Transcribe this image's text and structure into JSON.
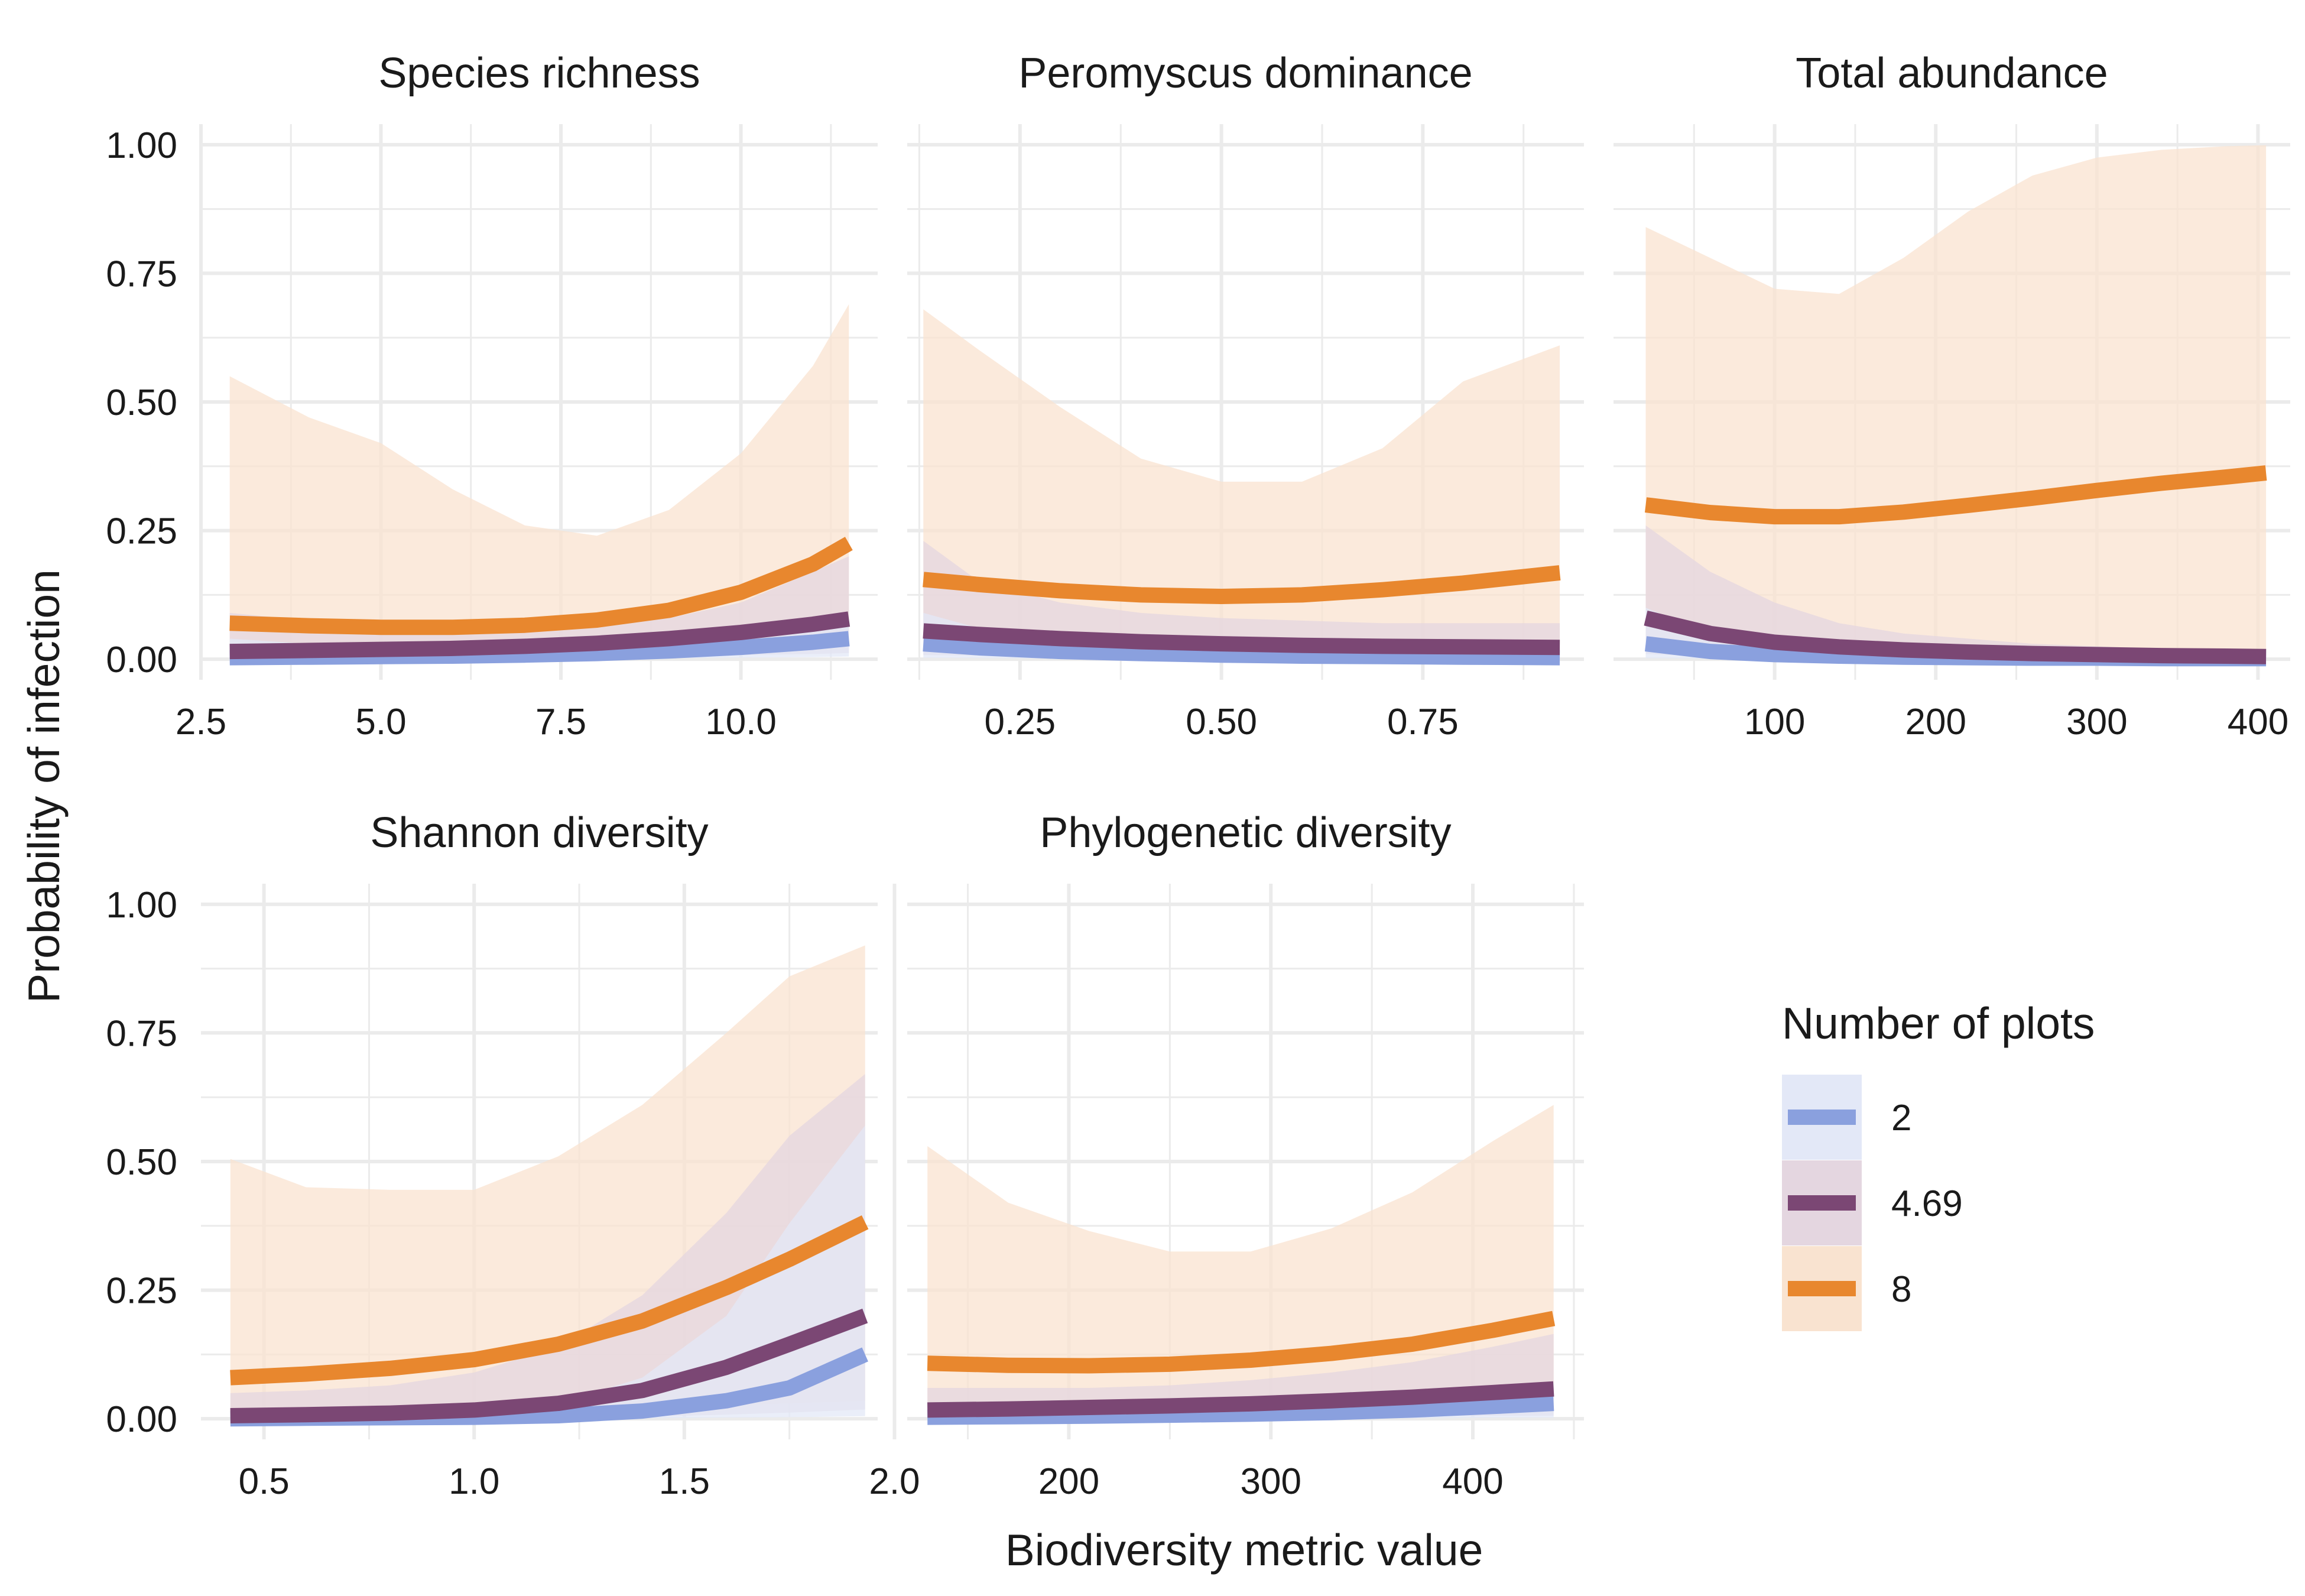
{
  "chart_data": {
    "type": "line",
    "ylabel": "Probability of infection",
    "xlabel": "Biodiversity metric value",
    "legend": {
      "title": "Number of plots",
      "placement": "right",
      "entries": [
        {
          "label": "2",
          "color": "#8aa0de",
          "fill": "#e3e8f7"
        },
        {
          "label": "4.69",
          "color": "#7b4774",
          "fill": "#e4d6e0"
        },
        {
          "label": "8",
          "color": "#e8872e",
          "fill": "#f9e3d0"
        }
      ]
    },
    "ylim": [
      -0.04,
      1.04
    ],
    "y_ticks": [
      0.0,
      0.25,
      0.5,
      0.75,
      1.0
    ],
    "y_tick_labels": [
      "0.00",
      "0.25",
      "0.50",
      "0.75",
      "1.00"
    ],
    "panels": [
      {
        "title": "Species richness",
        "xlim": [
          2.5,
          11.9
        ],
        "x_ticks": [
          2.5,
          5.0,
          7.5,
          10.0
        ],
        "x_tick_labels": [
          "2.5",
          "5.0",
          "7.5",
          "10.0"
        ],
        "x": [
          2.9,
          4.0,
          5.0,
          6.0,
          7.0,
          8.0,
          9.0,
          10.0,
          11.0,
          11.5
        ],
        "series": [
          {
            "name": "2",
            "values": [
              0.003,
              0.004,
              0.005,
              0.006,
              0.008,
              0.011,
              0.016,
              0.023,
              0.033,
              0.04
            ],
            "lower": [
              0.0,
              0.0,
              0.0,
              0.0,
              0.001,
              0.001,
              0.002,
              0.003,
              0.004,
              0.005
            ],
            "upper": [
              0.04,
              0.03,
              0.025,
              0.022,
              0.022,
              0.025,
              0.032,
              0.045,
              0.065,
              0.08
            ]
          },
          {
            "name": "4.69",
            "values": [
              0.015,
              0.017,
              0.019,
              0.021,
              0.025,
              0.031,
              0.04,
              0.052,
              0.068,
              0.078
            ],
            "lower": [
              0.001,
              0.001,
              0.002,
              0.002,
              0.003,
              0.004,
              0.006,
              0.008,
              0.01,
              0.012
            ],
            "upper": [
              0.09,
              0.075,
              0.065,
              0.06,
              0.06,
              0.065,
              0.08,
              0.11,
              0.17,
              0.2
            ]
          },
          {
            "name": "8",
            "values": [
              0.07,
              0.065,
              0.062,
              0.062,
              0.066,
              0.076,
              0.095,
              0.13,
              0.185,
              0.225
            ],
            "lower": [
              0.008,
              0.009,
              0.01,
              0.01,
              0.011,
              0.013,
              0.016,
              0.02,
              0.025,
              0.028
            ],
            "upper": [
              0.55,
              0.47,
              0.42,
              0.33,
              0.26,
              0.24,
              0.29,
              0.4,
              0.57,
              0.69
            ]
          }
        ]
      },
      {
        "title": "Peromyscus dominance",
        "xlim": [
          0.11,
          0.95
        ],
        "x_ticks": [
          0.25,
          0.5,
          0.75
        ],
        "x_tick_labels": [
          "0.25",
          "0.50",
          "0.75"
        ],
        "x": [
          0.13,
          0.2,
          0.3,
          0.4,
          0.5,
          0.6,
          0.7,
          0.8,
          0.92
        ],
        "series": [
          {
            "name": "2",
            "values": [
              0.03,
              0.022,
              0.015,
              0.011,
              0.008,
              0.006,
              0.005,
              0.004,
              0.003
            ],
            "lower": [
              0.003,
              0.002,
              0.001,
              0.001,
              0.001,
              0.0,
              0.0,
              0.0,
              0.0
            ],
            "upper": [
              0.09,
              0.06,
              0.045,
              0.035,
              0.03,
              0.025,
              0.022,
              0.02,
              0.02
            ]
          },
          {
            "name": "4.69",
            "values": [
              0.055,
              0.048,
              0.04,
              0.034,
              0.03,
              0.027,
              0.025,
              0.024,
              0.023
            ],
            "lower": [
              0.008,
              0.007,
              0.006,
              0.005,
              0.004,
              0.004,
              0.003,
              0.003,
              0.003
            ],
            "upper": [
              0.23,
              0.15,
              0.11,
              0.09,
              0.08,
              0.075,
              0.07,
              0.07,
              0.07
            ]
          },
          {
            "name": "8",
            "values": [
              0.155,
              0.145,
              0.133,
              0.125,
              0.122,
              0.125,
              0.135,
              0.148,
              0.168
            ],
            "lower": [
              0.03,
              0.03,
              0.03,
              0.03,
              0.03,
              0.03,
              0.03,
              0.03,
              0.03
            ],
            "upper": [
              0.68,
              0.6,
              0.49,
              0.39,
              0.345,
              0.345,
              0.41,
              0.54,
              0.61
            ]
          }
        ]
      },
      {
        "title": "Total abundance",
        "xlim": [
          0,
          420
        ],
        "x_ticks": [
          100,
          200,
          300,
          400
        ],
        "x_tick_labels": [
          "100",
          "200",
          "300",
          "400"
        ],
        "x": [
          20,
          60,
          100,
          140,
          180,
          220,
          260,
          300,
          340,
          380,
          405
        ],
        "series": [
          {
            "name": "2",
            "values": [
              0.03,
              0.015,
              0.009,
              0.006,
              0.004,
              0.003,
              0.002,
              0.002,
              0.001,
              0.001,
              0.001
            ],
            "lower": [
              0.002,
              0.001,
              0.0,
              0.0,
              0.0,
              0.0,
              0.0,
              0.0,
              0.0,
              0.0,
              0.0
            ],
            "upper": [
              0.1,
              0.05,
              0.035,
              0.025,
              0.02,
              0.016,
              0.013,
              0.011,
              0.01,
              0.01,
              0.01
            ]
          },
          {
            "name": "4.69",
            "values": [
              0.08,
              0.05,
              0.033,
              0.024,
              0.018,
              0.014,
              0.011,
              0.009,
              0.007,
              0.006,
              0.005
            ],
            "lower": [
              0.01,
              0.005,
              0.003,
              0.002,
              0.001,
              0.001,
              0.001,
              0.0,
              0.0,
              0.0,
              0.0
            ],
            "upper": [
              0.26,
              0.17,
              0.11,
              0.07,
              0.05,
              0.04,
              0.03,
              0.025,
              0.02,
              0.02,
              0.02
            ]
          },
          {
            "name": "8",
            "values": [
              0.3,
              0.285,
              0.277,
              0.277,
              0.286,
              0.299,
              0.313,
              0.328,
              0.342,
              0.354,
              0.362
            ],
            "lower": [
              0.04,
              0.03,
              0.025,
              0.02,
              0.018,
              0.015,
              0.012,
              0.01,
              0.008,
              0.006,
              0.005
            ],
            "upper": [
              0.84,
              0.78,
              0.72,
              0.71,
              0.78,
              0.87,
              0.94,
              0.975,
              0.99,
              0.997,
              0.999
            ]
          }
        ]
      },
      {
        "title": "Shannon diversity",
        "xlim": [
          0.35,
          1.96
        ],
        "x_ticks": [
          0.5,
          1.0,
          1.5,
          2.0
        ],
        "x_tick_labels": [
          "0.5",
          "1.0",
          "1.5",
          "2.0"
        ],
        "x": [
          0.42,
          0.6,
          0.8,
          1.0,
          1.2,
          1.4,
          1.6,
          1.75,
          1.93
        ],
        "series": [
          {
            "name": "2",
            "values": [
              0.0,
              0.001,
              0.002,
              0.003,
              0.006,
              0.015,
              0.035,
              0.06,
              0.125
            ],
            "lower": [
              0.0,
              0.0,
              0.0,
              0.0,
              0.0,
              0.001,
              0.002,
              0.003,
              0.005
            ],
            "upper": [
              0.01,
              0.012,
              0.015,
              0.02,
              0.03,
              0.08,
              0.2,
              0.38,
              0.57
            ]
          },
          {
            "name": "4.69",
            "values": [
              0.006,
              0.008,
              0.011,
              0.017,
              0.03,
              0.055,
              0.1,
              0.145,
              0.2
            ],
            "lower": [
              0.0,
              0.0,
              0.001,
              0.001,
              0.002,
              0.004,
              0.008,
              0.012,
              0.018
            ],
            "upper": [
              0.05,
              0.055,
              0.065,
              0.09,
              0.14,
              0.24,
              0.4,
              0.55,
              0.67
            ]
          },
          {
            "name": "8",
            "values": [
              0.08,
              0.087,
              0.098,
              0.115,
              0.145,
              0.19,
              0.255,
              0.31,
              0.382
            ],
            "lower": [
              0.005,
              0.006,
              0.008,
              0.01,
              0.013,
              0.018,
              0.025,
              0.03,
              0.035
            ],
            "upper": [
              0.505,
              0.45,
              0.445,
              0.445,
              0.51,
              0.61,
              0.75,
              0.86,
              0.92
            ]
          }
        ]
      },
      {
        "title": "Phylogenetic diversity",
        "xlim": [
          120,
          455
        ],
        "x_ticks": [
          200,
          300,
          400
        ],
        "x_tick_labels": [
          "200",
          "300",
          "400"
        ],
        "x": [
          130,
          170,
          210,
          250,
          290,
          330,
          370,
          410,
          440
        ],
        "series": [
          {
            "name": "2",
            "values": [
              0.003,
              0.004,
              0.005,
              0.007,
              0.009,
              0.012,
              0.017,
              0.024,
              0.03
            ],
            "lower": [
              0.0,
              0.0,
              0.0,
              0.0,
              0.001,
              0.001,
              0.001,
              0.002,
              0.002
            ],
            "upper": [
              0.03,
              0.025,
              0.022,
              0.022,
              0.025,
              0.03,
              0.04,
              0.055,
              0.07
            ]
          },
          {
            "name": "4.69",
            "values": [
              0.017,
              0.019,
              0.022,
              0.025,
              0.029,
              0.035,
              0.042,
              0.051,
              0.058
            ],
            "lower": [
              0.002,
              0.002,
              0.003,
              0.003,
              0.004,
              0.004,
              0.005,
              0.006,
              0.006
            ],
            "upper": [
              0.06,
              0.06,
              0.06,
              0.065,
              0.075,
              0.09,
              0.11,
              0.14,
              0.165
            ]
          },
          {
            "name": "8",
            "values": [
              0.108,
              0.104,
              0.103,
              0.106,
              0.114,
              0.127,
              0.145,
              0.172,
              0.195
            ],
            "lower": [
              0.015,
              0.016,
              0.017,
              0.018,
              0.019,
              0.02,
              0.022,
              0.025,
              0.027
            ],
            "upper": [
              0.53,
              0.42,
              0.365,
              0.325,
              0.325,
              0.37,
              0.44,
              0.54,
              0.61
            ]
          }
        ]
      }
    ]
  }
}
